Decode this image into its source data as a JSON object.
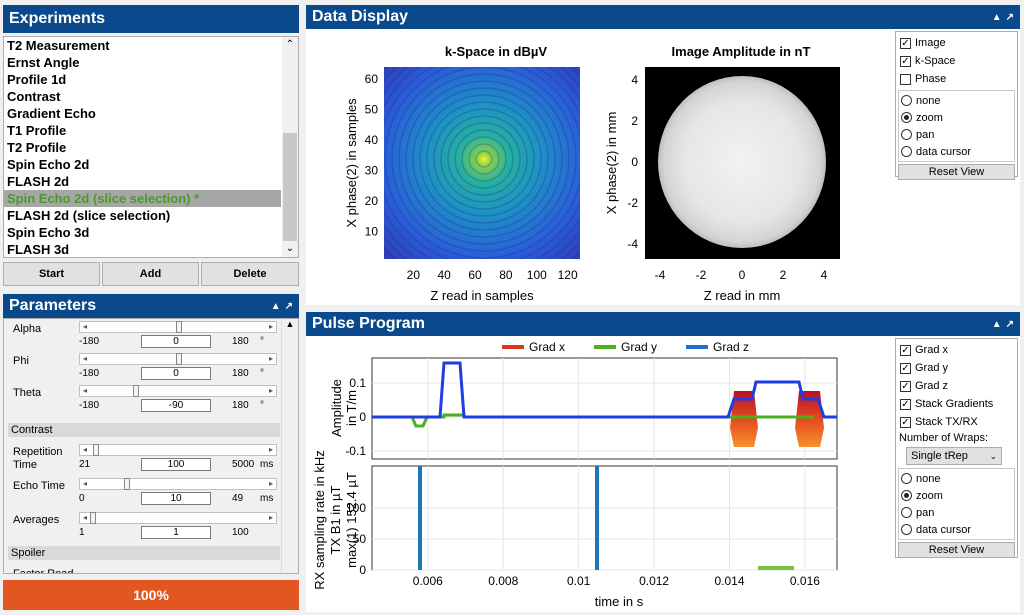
{
  "experiments": {
    "title": "Experiments",
    "items": [
      "T2 Measurement",
      "Ernst Angle",
      "Profile 1d",
      "Contrast",
      "Gradient Echo",
      "T1 Profile",
      "T2 Profile",
      "Spin Echo 2d",
      "FLASH 2d",
      "Spin Echo 2d (slice selection) *",
      "FLASH 2d (slice selection)",
      "Spin Echo 3d",
      "FLASH 3d"
    ],
    "selected_index": 9,
    "buttons": {
      "start": "Start",
      "add": "Add",
      "delete": "Delete"
    }
  },
  "parameters": {
    "title": "Parameters",
    "rows": [
      {
        "label": "Alpha",
        "min": "-180",
        "value": "0",
        "max": "180",
        "unit": "°",
        "fraction": 0.5
      },
      {
        "label": "Phi",
        "min": "-180",
        "value": "0",
        "max": "180",
        "unit": "°",
        "fraction": 0.5
      },
      {
        "label": "Theta",
        "min": "-180",
        "value": "-90",
        "max": "180",
        "unit": "°",
        "fraction": 0.25
      }
    ],
    "section_contrast": "Contrast",
    "contrast_rows": [
      {
        "label": "Repetition Time",
        "min": "21",
        "value": "100",
        "max": "5000",
        "unit": "ms",
        "fraction": 0.016
      },
      {
        "label": "Echo Time",
        "min": "0",
        "value": "10",
        "max": "49",
        "unit": "ms",
        "fraction": 0.2
      },
      {
        "label": "Averages",
        "min": "1",
        "value": "1",
        "max": "100",
        "unit": "",
        "fraction": 0.0
      }
    ],
    "section_spoiler": "Spoiler",
    "spoiler_first_label": "Factor Read"
  },
  "progress": {
    "label": "100%",
    "value": 1.0,
    "color": "#e2561f"
  },
  "data_display": {
    "title": "Data Display",
    "kspace": {
      "title": "k-Space in dBµV",
      "xlabel": "Z read in samples",
      "ylabel": "X phase(2) in samples",
      "xticks": [
        "20",
        "40",
        "60",
        "80",
        "100",
        "120"
      ],
      "yticks": [
        "60",
        "50",
        "40",
        "30",
        "20",
        "10"
      ]
    },
    "image": {
      "title": "Image Amplitude in nT",
      "xlabel": "Z read in mm",
      "ylabel": "X phase(2) in mm",
      "xticks": [
        "-4",
        "-2",
        "0",
        "2",
        "4"
      ],
      "yticks": [
        "4",
        "2",
        "0",
        "-2",
        "-4"
      ]
    },
    "checkboxes": [
      {
        "label": "Image",
        "checked": true
      },
      {
        "label": "k-Space",
        "checked": true
      },
      {
        "label": "Phase",
        "checked": false
      }
    ],
    "radios": [
      {
        "label": "none",
        "on": false
      },
      {
        "label": "zoom",
        "on": true
      },
      {
        "label": "pan",
        "on": false
      },
      {
        "label": "data cursor",
        "on": false
      }
    ],
    "reset": "Reset View"
  },
  "pulse_program": {
    "title": "Pulse Program",
    "legend": [
      {
        "name": "Grad x",
        "color": "#d9391f"
      },
      {
        "name": "Grad y",
        "color": "#4caf1e"
      },
      {
        "name": "Grad z",
        "color": "#1f6fd1"
      }
    ],
    "top_ylabel_1": "Amplitude",
    "top_ylabel_2": "in T/m",
    "top_yticks": [
      "0.1",
      "0",
      "-0.1"
    ],
    "bottom_ylabel_1": "RX sampling rate in kHz",
    "bottom_ylabel_2": "TX B1 in µT",
    "bottom_ylabel_3": "max(1) 152.4 µT",
    "bottom_yticks": [
      "100",
      "50",
      "0"
    ],
    "xticks": [
      "0.006",
      "0.008",
      "0.01",
      "0.012",
      "0.014",
      "0.016"
    ],
    "xlabel": "time in s",
    "checkboxes": [
      {
        "label": "Grad x",
        "checked": true
      },
      {
        "label": "Grad y",
        "checked": true
      },
      {
        "label": "Grad z",
        "checked": true
      },
      {
        "label": "Stack Gradients",
        "checked": true
      },
      {
        "label": "Stack TX/RX",
        "checked": true
      }
    ],
    "wraps_label": "Number of Wraps:",
    "wraps_value": "Single tRep",
    "radios": [
      {
        "label": "none",
        "on": false
      },
      {
        "label": "zoom",
        "on": true
      },
      {
        "label": "pan",
        "on": false
      },
      {
        "label": "data cursor",
        "on": false
      }
    ],
    "reset": "Reset View"
  }
}
